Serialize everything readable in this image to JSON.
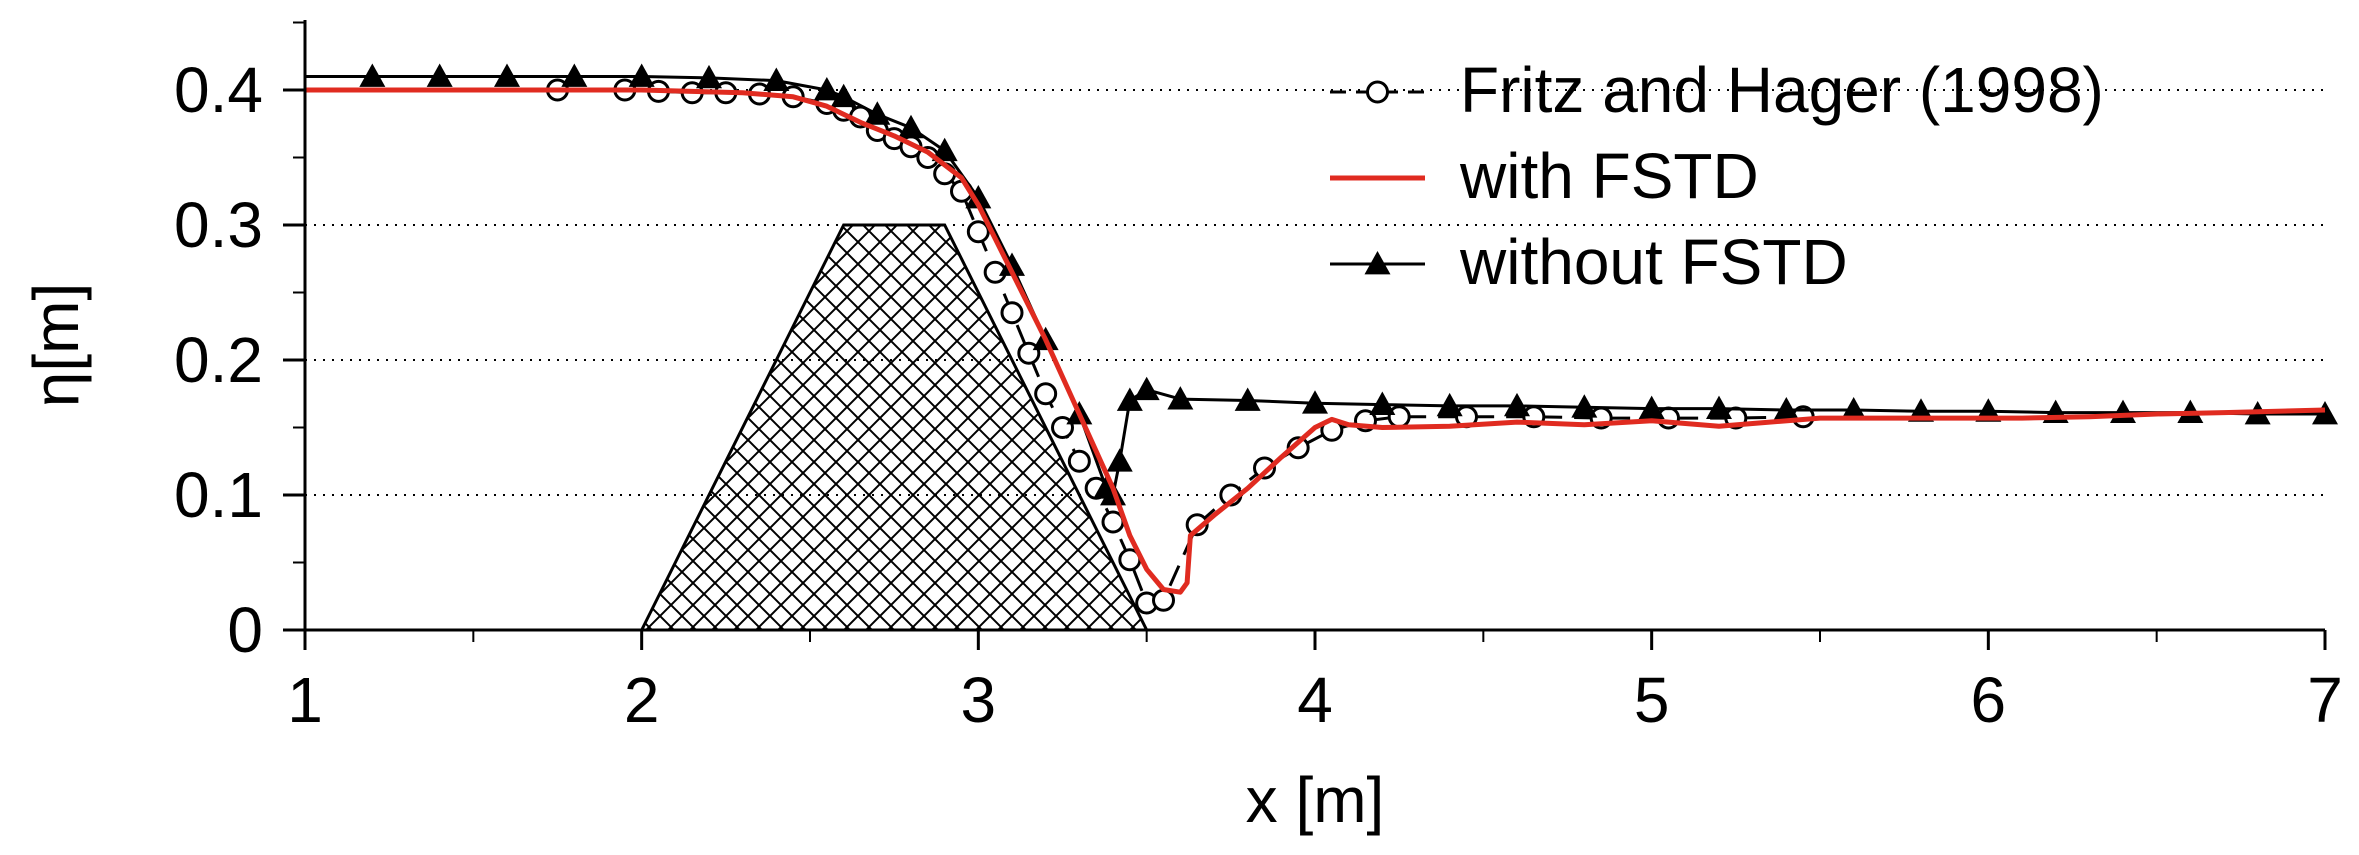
{
  "chart_data": {
    "type": "line",
    "title": "",
    "xlabel": "x [m]",
    "ylabel": "η[m]",
    "xlim": [
      1,
      7
    ],
    "ylim": [
      0,
      0.4
    ],
    "xticks": [
      1,
      2,
      3,
      4,
      5,
      6,
      7
    ],
    "xtick_labels": [
      "1",
      "2",
      "3",
      "4",
      "5",
      "6",
      "7"
    ],
    "yticks": [
      0,
      0.1,
      0.2,
      0.3,
      0.4
    ],
    "ytick_labels": [
      "0",
      "0.1",
      "0.2",
      "0.3",
      "0.4"
    ],
    "grid": "horizontal dotted",
    "legend_position": "top-right",
    "obstacle": {
      "description": "cross-hatched trapezoid",
      "x": [
        2.0,
        2.6,
        2.9,
        3.5
      ],
      "y": [
        0,
        0.3,
        0.3,
        0
      ]
    },
    "series": [
      {
        "name": "Fritz and Hager (1998)",
        "color": "#000000",
        "style": "dashed",
        "marker": "open-circle",
        "x": [
          1.75,
          1.95,
          2.05,
          2.15,
          2.25,
          2.35,
          2.45,
          2.55,
          2.6,
          2.65,
          2.7,
          2.75,
          2.8,
          2.85,
          2.9,
          2.95,
          3.0,
          3.05,
          3.1,
          3.15,
          3.2,
          3.25,
          3.3,
          3.35,
          3.4,
          3.45,
          3.5,
          3.55,
          3.65,
          3.75,
          3.85,
          3.95,
          4.05,
          4.15,
          4.25,
          4.45,
          4.65,
          4.85,
          5.05,
          5.25,
          5.45
        ],
        "y": [
          0.4,
          0.4,
          0.399,
          0.398,
          0.398,
          0.397,
          0.395,
          0.39,
          0.385,
          0.38,
          0.37,
          0.364,
          0.358,
          0.35,
          0.338,
          0.325,
          0.295,
          0.265,
          0.235,
          0.205,
          0.175,
          0.15,
          0.125,
          0.105,
          0.08,
          0.052,
          0.02,
          0.022,
          0.078,
          0.1,
          0.12,
          0.135,
          0.148,
          0.155,
          0.158,
          0.158,
          0.158,
          0.157,
          0.157,
          0.157,
          0.158
        ]
      },
      {
        "name": "with FSTD",
        "color": "#e02b20",
        "style": "solid",
        "marker": "none",
        "x": [
          1.0,
          2.0,
          2.3,
          2.45,
          2.55,
          2.65,
          2.75,
          2.85,
          2.95,
          3.0,
          3.1,
          3.2,
          3.3,
          3.4,
          3.45,
          3.5,
          3.55,
          3.6,
          3.62,
          3.63,
          3.7,
          3.8,
          3.9,
          4.0,
          4.05,
          4.1,
          4.2,
          4.4,
          4.6,
          4.8,
          5.0,
          5.2,
          5.3,
          5.5,
          5.7,
          5.9,
          6.1,
          6.3,
          6.5,
          6.7,
          7.0
        ],
        "y": [
          0.4,
          0.4,
          0.398,
          0.395,
          0.388,
          0.376,
          0.366,
          0.354,
          0.335,
          0.315,
          0.265,
          0.215,
          0.16,
          0.105,
          0.07,
          0.045,
          0.03,
          0.028,
          0.035,
          0.07,
          0.085,
          0.105,
          0.128,
          0.15,
          0.156,
          0.152,
          0.15,
          0.151,
          0.154,
          0.152,
          0.155,
          0.151,
          0.153,
          0.157,
          0.157,
          0.157,
          0.157,
          0.158,
          0.16,
          0.161,
          0.163
        ]
      },
      {
        "name": "without FSTD",
        "color": "#000000",
        "style": "solid",
        "marker": "filled-triangle",
        "x": [
          1.0,
          1.2,
          1.4,
          1.6,
          1.8,
          2.0,
          2.2,
          2.4,
          2.55,
          2.6,
          2.7,
          2.8,
          2.9,
          3.0,
          3.1,
          3.2,
          3.3,
          3.38,
          3.4,
          3.42,
          3.45,
          3.5,
          3.6,
          3.8,
          4.0,
          4.2,
          4.4,
          4.6,
          4.8,
          5.0,
          5.2,
          5.4,
          5.6,
          5.8,
          6.0,
          6.2,
          6.4,
          6.6,
          6.8,
          7.0
        ],
        "y": [
          0.41,
          0.41,
          0.41,
          0.41,
          0.41,
          0.41,
          0.409,
          0.407,
          0.4,
          0.395,
          0.382,
          0.372,
          0.355,
          0.32,
          0.27,
          0.215,
          0.16,
          0.105,
          0.1,
          0.125,
          0.17,
          0.178,
          0.171,
          0.17,
          0.168,
          0.167,
          0.166,
          0.166,
          0.165,
          0.164,
          0.164,
          0.163,
          0.163,
          0.162,
          0.162,
          0.161,
          0.161,
          0.161,
          0.16,
          0.16
        ]
      }
    ]
  }
}
